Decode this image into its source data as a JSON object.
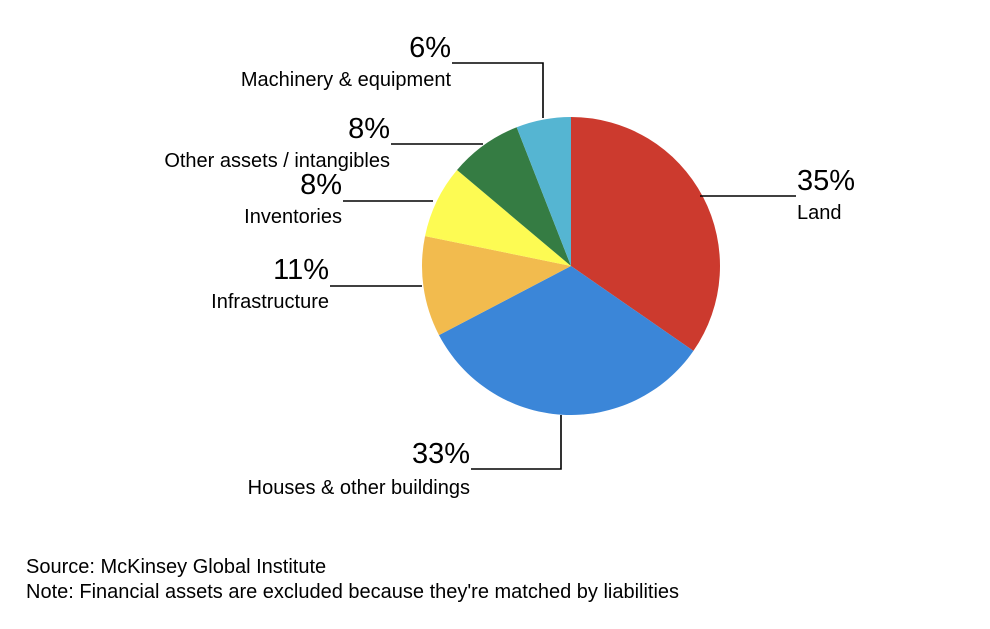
{
  "chart_data": {
    "type": "pie",
    "slices": [
      {
        "label": "Land",
        "value": 35,
        "value_label": "35%",
        "color": "#cc3a2e"
      },
      {
        "label": "Houses & other buildings",
        "value": 33,
        "value_label": "33%",
        "color": "#3b86d8"
      },
      {
        "label": "Infrastructure",
        "value": 11,
        "value_label": "11%",
        "color": "#f2bb4e"
      },
      {
        "label": "Inventories",
        "value": 8,
        "value_label": "8%",
        "color": "#fdfb53"
      },
      {
        "label": "Other assets / intangibles",
        "value": 8,
        "value_label": "8%",
        "color": "#357c43"
      },
      {
        "label": "Machinery & equipment",
        "value": 6,
        "value_label": "6%",
        "color": "#55b5d2"
      }
    ],
    "start_angle_deg": 0,
    "direction": "clockwise"
  },
  "footer": {
    "source": "Source: McKinsey Global Institute",
    "note": "Note: Financial assets are excluded because they're matched by liabilities"
  }
}
